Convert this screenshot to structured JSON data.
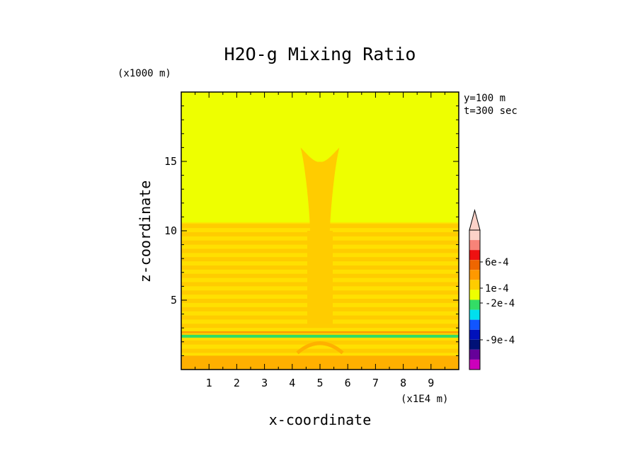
{
  "chart_data": {
    "type": "heatmap",
    "title": "H2O-g Mixing Ratio",
    "xlabel": "x-coordinate",
    "ylabel": "z-coordinate",
    "x_unit": "(x1E4 m)",
    "y_unit": "(x1000 m)",
    "annotations": [
      "y=100 m",
      "t=300 sec"
    ],
    "xlim": [
      0,
      10
    ],
    "ylim": [
      0,
      20
    ],
    "x_ticks": [
      1,
      2,
      3,
      4,
      5,
      6,
      7,
      8,
      9
    ],
    "y_ticks": [
      5,
      10,
      15
    ],
    "colors": {
      "background_field": "#eeff00",
      "layer_light": "#ffe000",
      "layer": "#ffcc00",
      "layer_dark": "#ffb000",
      "band_line": "#33dd66",
      "thin_line": "#ff9900"
    },
    "features": {
      "stratified_layers_z": [
        0,
        10.6
      ],
      "plume_x": [
        4.3,
        5.7
      ],
      "plume_top_z": 16,
      "green_band_z": 2.4,
      "orange_line_z": 2.7
    },
    "colorbar": {
      "labels": [
        {
          "value": 0.0006,
          "text": "6e-4"
        },
        {
          "value": 0.0001,
          "text": "1e-4"
        },
        {
          "value": -0.0002,
          "text": "-2e-4"
        },
        {
          "value": -0.0009,
          "text": "-9e-4"
        }
      ],
      "colors_top_to_bottom": [
        "#fcd2c8",
        "#f78378",
        "#ee1111",
        "#ee6600",
        "#ff9900",
        "#ffcc00",
        "#eeff00",
        "#33dd66",
        "#00e0ee",
        "#1155ff",
        "#0011bb",
        "#001177",
        "#660099",
        "#cc00bb"
      ]
    }
  }
}
